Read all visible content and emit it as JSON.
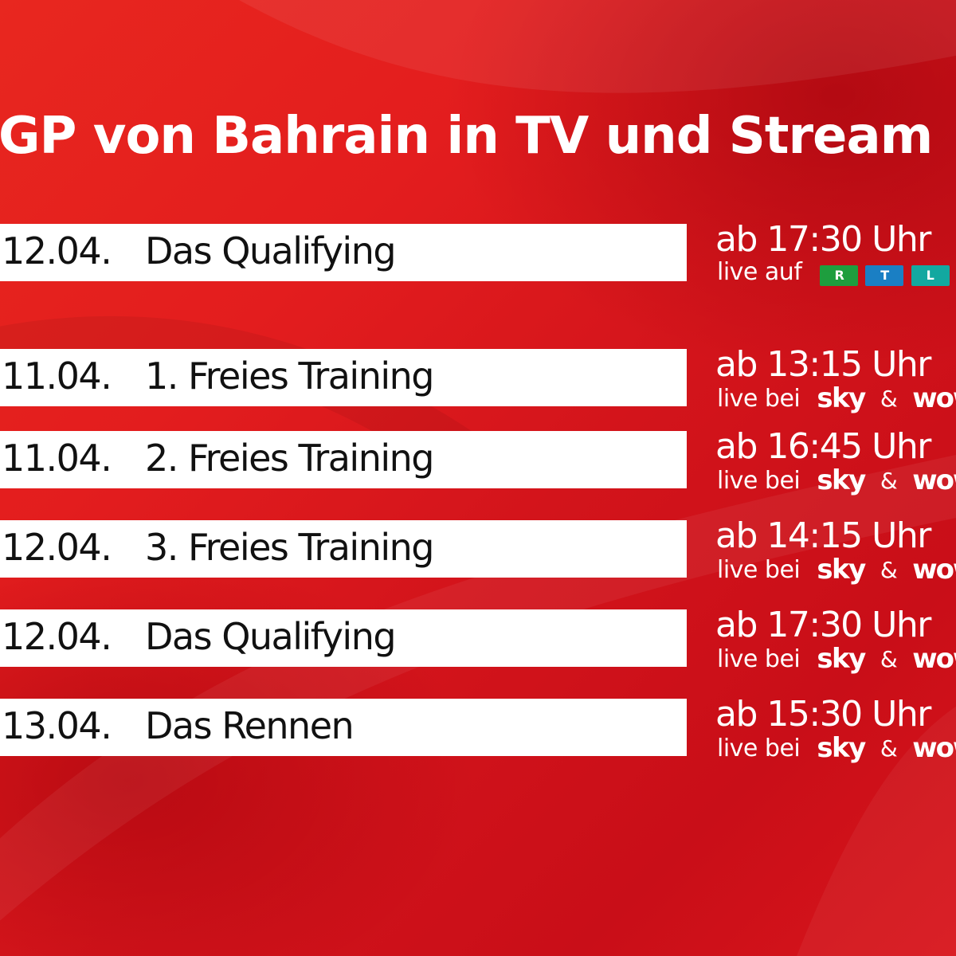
{
  "title": "GP von Bahrain in TV und Stream",
  "featured": {
    "date": "12.04.",
    "event": "Das Qualifying",
    "time": "ab 17:30 Uhr",
    "live_text": "live auf",
    "logo": {
      "letters": [
        "R",
        "T",
        "L"
      ],
      "colors": [
        "#1e9e3e",
        "#1a7fc4",
        "#13a8a0"
      ]
    }
  },
  "schedule": [
    {
      "date": "11.04.",
      "event": "1. Freies Training",
      "time": "ab 13:15 Uhr"
    },
    {
      "date": "11.04.",
      "event": "2. Freies Training",
      "time": "ab 16:45 Uhr"
    },
    {
      "date": "12.04.",
      "event": "3. Freies Training",
      "time": "ab 14:15 Uhr"
    },
    {
      "date": "12.04.",
      "event": "Das Qualifying",
      "time": "ab 17:30 Uhr"
    },
    {
      "date": "13.04.",
      "event": "Das Rennen",
      "time": "ab 15:30 Uhr"
    }
  ],
  "broadcast": {
    "live_text": "live bei",
    "sky": "sky",
    "amp": "&",
    "wow": "wow"
  },
  "colors": {
    "background": "#d6181a",
    "bar": "#ffffff",
    "text_dark": "#111111",
    "text_light": "#ffffff"
  }
}
